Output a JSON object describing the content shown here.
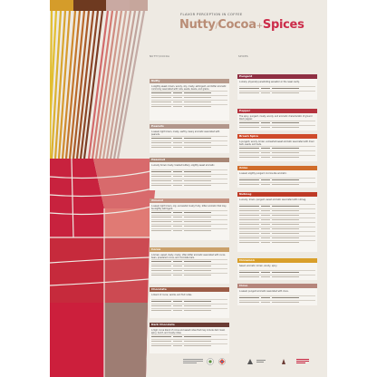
{
  "header": {
    "kicker": "Flavor Perception in Coffee",
    "title_part1": "Nutty",
    "title_sep": "/",
    "title_part2": "Cocoa",
    "title_sep2": "+",
    "title_part3": "Spices"
  },
  "columns": {
    "left_heading": "Nutty/Cocoa",
    "right_heading": "Spices"
  },
  "colors": {
    "nutty": "#b79a8c",
    "peanuts": "#b2968b",
    "hazelnut": "#a88776",
    "almond": "#c59484",
    "cocoa": "#caa06a",
    "chocolate": "#9c5c46",
    "dark_chocolate": "#6b3c35",
    "pungent": "#8f2f43",
    "pepper": "#b5343f",
    "brown_spice": "#cf4a2a",
    "anise": "#d06c2a",
    "nutmeg": "#be3a26",
    "cinnamon": "#d99f2a",
    "clove": "#b5857b",
    "red_panel": "#c8223e",
    "wheel_rose": "#d86a6c",
    "wheel_mauve": "#9e7d73"
  },
  "left_cards": [
    {
      "name": "Nutty",
      "desc": "A slightly sweet, brown, woody, oily, musty, astringent, and bitter aromatic commonly associated with nuts, seeds, beans, and grains."
    },
    {
      "name": "Peanuts",
      "desc": "A sweet, light brown, musty, earthy, beany aromatic associated with peanuts."
    },
    {
      "name": "Hazelnut",
      "desc": "A woody brown musty, toasted buttery, slightly sweet aromatic."
    },
    {
      "name": "Almond",
      "desc": "A sweet, light brown, oily, somewhat musty fruity, bitter aromatic that may be slightly astringent."
    },
    {
      "name": "Cocoa",
      "desc": "A brown, sweet, dusty, musty, often bitter aromatic associated with cocoa bean, powdered cocoa, and chocolate bars."
    },
    {
      "name": "Chocolate",
      "desc": "A blend of cocoa, vanilla, and fruit notes."
    },
    {
      "name": "Dark Chocolate",
      "desc": "A high cocoa blend of cocoa and sweet notes that may include dark roast, spicy, burnt, and musty notes."
    }
  ],
  "right_cards": [
    {
      "name": "Pungent",
      "desc": "A sharp, physically penetrating sensation in the nasal cavity."
    },
    {
      "name": "Pepper",
      "desc": "The spicy, pungent, musty, woody, and aromatic characteristic of ground black pepper."
    },
    {
      "name": "Brown Spice",
      "desc": "A pungent, woody, brown, somewhat sweet aromatic associated with dried bark, seeds, and buds."
    },
    {
      "name": "Anise",
      "desc": "A sweet, slightly pungent, licorice-like aromatic."
    },
    {
      "name": "Nutmeg",
      "desc": "A woody, brown, pungent, sweet aromatic associated with nutmeg."
    },
    {
      "name": "Cinnamon",
      "desc": "Sweet, aromatic, brown, woody, spicy."
    },
    {
      "name": "Clove",
      "desc": "A sweet, pungent aromatic associated with clove."
    }
  ]
}
